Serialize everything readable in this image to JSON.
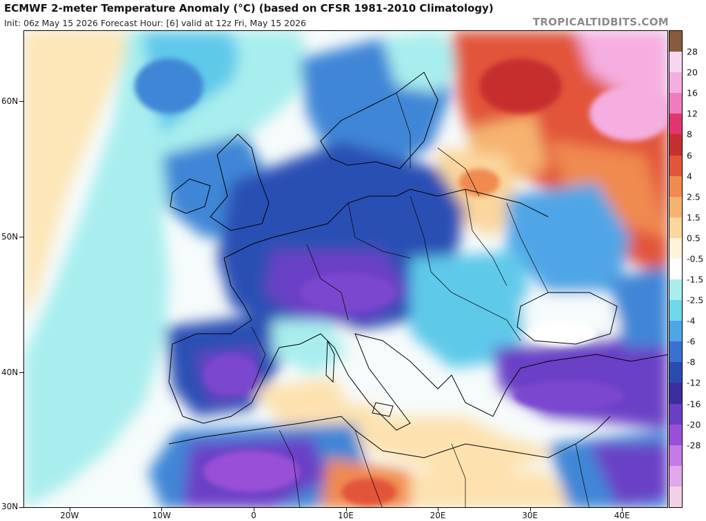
{
  "header": {
    "title": "ECMWF 2-meter Temperature Anomaly (°C) (based on CFSR 1981-2010 Climatology)",
    "subtitle": "Init: 06z May 15 2026   Forecast Hour: [6]   valid at 12z Fri, May 15 2026",
    "brand": "TROPICALTIDBITS.COM"
  },
  "map": {
    "lat_labels": [
      {
        "text": "60N",
        "lat": 60
      },
      {
        "text": "50N",
        "lat": 50
      },
      {
        "text": "40N",
        "lat": 40
      },
      {
        "text": "30N",
        "lat": 30
      }
    ],
    "lon_labels": [
      {
        "text": "20W",
        "lon": -20
      },
      {
        "text": "10W",
        "lon": -10
      },
      {
        "text": "0",
        "lon": 0
      },
      {
        "text": "10E",
        "lon": 10
      },
      {
        "text": "20E",
        "lon": 20
      },
      {
        "text": "30E",
        "lon": 30
      },
      {
        "text": "40E",
        "lon": 40
      }
    ],
    "colors": {
      "ocean_neutral": "#f6fbfb",
      "cool_light": "#a6ecee",
      "cool_mid": "#5ec9ea",
      "cool_blue": "#3f86d6",
      "cool_dark": "#2a4fb4",
      "cold_purple": "#6a3fc6",
      "warm_light": "#fde2b0",
      "warm_orange": "#f3a05a",
      "warm_red": "#d63c2a",
      "warm_pink": "#f08ed0",
      "border": "#000000"
    }
  },
  "colorbar": {
    "labels": [
      "28",
      "20",
      "16",
      "12",
      "8",
      "6",
      "4",
      "2.5",
      "1.5",
      "0.5",
      "-0.5",
      "-1.5",
      "-2.5",
      "-4",
      "-6",
      "-8",
      "-12",
      "-16",
      "-20",
      "-28"
    ],
    "colors": [
      "#8a5a3c",
      "#f9d6ef",
      "#f5aee0",
      "#ef7cbf",
      "#e0356e",
      "#c62f2f",
      "#e2553a",
      "#f08a4f",
      "#f6b36f",
      "#fbd69d",
      "#fff3da",
      "#ffffff",
      "#a9eeee",
      "#6fd8ea",
      "#4fa6e6",
      "#3a70d2",
      "#2a4bb2",
      "#3b2f9e",
      "#6a3fc6",
      "#9a4fd8",
      "#c77ae6",
      "#e2a8ec",
      "#f2cfe8"
    ]
  }
}
